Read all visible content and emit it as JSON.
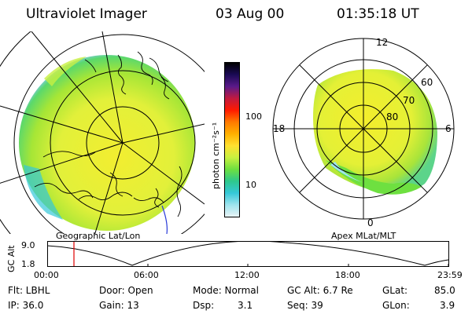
{
  "header": {
    "instrument": "Ultraviolet Imager",
    "date": "03 Aug 00",
    "time": "01:35:18 UT"
  },
  "left_panel": {
    "projection_label": "Geographic Lat/Lon"
  },
  "right_panel": {
    "projection_label": "Apex MLat/MLT",
    "mlt_labels": {
      "top": "12",
      "right": "6",
      "bottom": "0",
      "left": "18"
    },
    "lat_labels": [
      "60",
      "70",
      "80"
    ]
  },
  "colorbar": {
    "unit_label": "photon cm⁻²s⁻¹",
    "ticks": [
      "100",
      "10"
    ],
    "colors": [
      "#000000",
      "#1a0a55",
      "#5a1a8a",
      "#c01a40",
      "#ff1a00",
      "#ff7a00",
      "#ffb000",
      "#ffe030",
      "#c8f040",
      "#6ee040",
      "#2ec88c",
      "#35c8d8",
      "#9ee4ee",
      "#e8f4f6"
    ]
  },
  "orbit_plot": {
    "ylabel": "GC Alt",
    "ylim_labels": [
      "9.0",
      "1.8"
    ],
    "time_ticks": [
      "00:00",
      "06:00",
      "12:00",
      "18:00",
      "23:59"
    ],
    "marker_color": "#dd0000"
  },
  "info": {
    "filter": "Flt: LBHL",
    "ip": "IP: 36.0",
    "door": "Door: Open",
    "gain": "Gain: 13",
    "mode": "Mode: Normal",
    "dsp": "Dsp:",
    "dsp_value": "3.1",
    "gc_alt": "GC Alt: 6.7 Re",
    "seq": "Seq: 39",
    "glat": "GLat:",
    "glat_value": "85.0",
    "glon": "GLon:",
    "glon_value": "3.9"
  }
}
